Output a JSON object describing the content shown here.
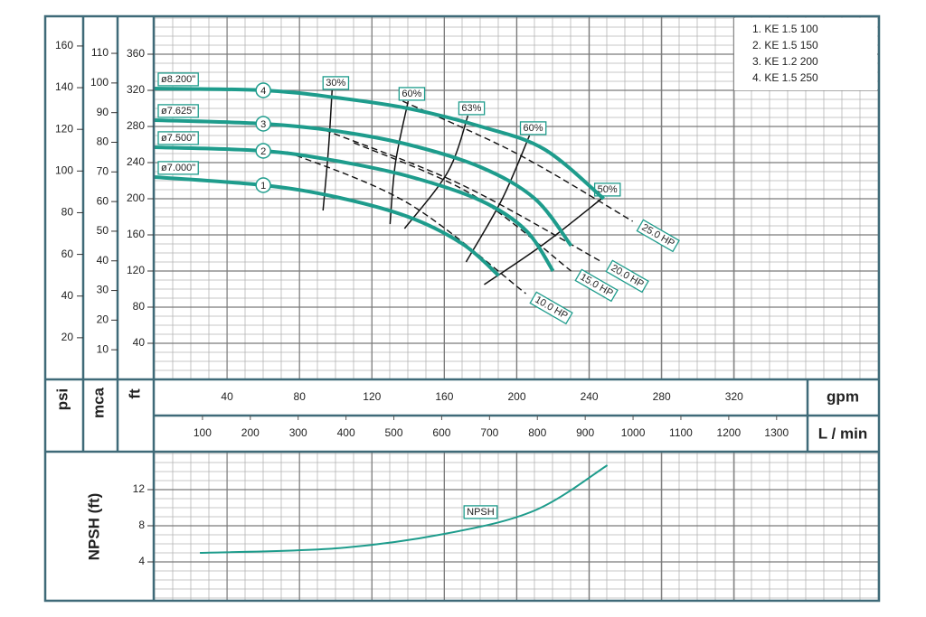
{
  "chart_data": [
    {
      "type": "line",
      "y_label": "ft",
      "ylim": [
        0,
        400
      ],
      "yticks": [
        40,
        80,
        120,
        160,
        200,
        240,
        280,
        320,
        360
      ],
      "psi": {
        "label": "psi",
        "lim": [
          0,
          173.4
        ],
        "ticks": [
          20,
          40,
          60,
          80,
          100,
          120,
          140,
          160
        ]
      },
      "mca": {
        "label": "mca",
        "lim": [
          0,
          121.9
        ],
        "ticks": [
          10,
          20,
          30,
          40,
          50,
          60,
          70,
          80,
          90,
          100,
          110
        ]
      },
      "x_label": "gpm",
      "xlim": [
        0,
        400
      ],
      "xticks": [
        40,
        80,
        120,
        160,
        200,
        240,
        280,
        320
      ],
      "lmin": {
        "label": "L / min",
        "lim": [
          0,
          1514
        ],
        "ticks": [
          100,
          200,
          300,
          400,
          500,
          600,
          700,
          800,
          900,
          1000,
          1100,
          1200,
          1300
        ]
      },
      "grid": true,
      "series": [
        {
          "name": "ø8.200\"",
          "id": "4",
          "color": "#1e9c8c",
          "x": [
            0,
            60,
            100,
            140,
            180,
            215,
            248
          ],
          "values": [
            322,
            320,
            312,
            300,
            280,
            255,
            200
          ]
        },
        {
          "name": "ø7.625\"",
          "id": "3",
          "color": "#1e9c8c",
          "x": [
            0,
            60,
            100,
            140,
            180,
            210,
            230
          ],
          "values": [
            287,
            283,
            275,
            260,
            235,
            200,
            148
          ]
        },
        {
          "name": "ø7.500\"",
          "id": "2",
          "color": "#1e9c8c",
          "x": [
            0,
            60,
            100,
            140,
            180,
            205,
            220
          ],
          "values": [
            257,
            253,
            242,
            225,
            198,
            165,
            120
          ]
        },
        {
          "name": "ø7.000\"",
          "id": "1",
          "color": "#1e9c8c",
          "x": [
            0,
            60,
            100,
            140,
            170,
            190
          ],
          "values": [
            224,
            215,
            202,
            180,
            150,
            115
          ]
        }
      ],
      "efficiency": [
        {
          "label": "30%",
          "x": [
            98,
            96,
            93
          ],
          "values": [
            320,
            255,
            187
          ]
        },
        {
          "label": "60%",
          "x": [
            140,
            133,
            130
          ],
          "values": [
            308,
            240,
            172
          ]
        },
        {
          "label": "63%",
          "x": [
            173,
            162,
            138
          ],
          "values": [
            292,
            230,
            167
          ]
        },
        {
          "label": "60%",
          "x": [
            207,
            192,
            172
          ],
          "values": [
            270,
            200,
            130
          ]
        },
        {
          "label": "50%",
          "x": [
            248,
            215,
            182
          ],
          "values": [
            202,
            150,
            105
          ]
        }
      ],
      "power": [
        {
          "label": "25.0 HP",
          "x": [
            137,
            200,
            264
          ],
          "values": [
            308,
            250,
            175
          ]
        },
        {
          "label": "20.0 HP",
          "x": [
            94,
            170,
            247
          ],
          "values": [
            276,
            215,
            130
          ]
        },
        {
          "label": "15.0 HP",
          "x": [
            110,
            175,
            230
          ],
          "values": [
            262,
            205,
            120
          ]
        },
        {
          "label": "10.0 HP",
          "x": [
            73,
            140,
            205
          ],
          "values": [
            252,
            195,
            95
          ]
        }
      ],
      "legend": [
        "1. KE 1.5 100",
        "2. KE 1.5 150",
        "3. KE 1.2 200",
        "4. KE 1.5 250"
      ]
    },
    {
      "type": "line",
      "y_label": "NPSH (ft)",
      "ylim": [
        0,
        16
      ],
      "yticks": [
        4,
        8,
        12
      ],
      "xlim": [
        0,
        400
      ],
      "grid": true,
      "series": [
        {
          "name": "NPSH",
          "color": "#1e9c8c",
          "x": [
            25,
            100,
            160,
            210,
            250
          ],
          "values": [
            5.0,
            5.5,
            7.1,
            9.7,
            14.7
          ]
        }
      ]
    }
  ]
}
